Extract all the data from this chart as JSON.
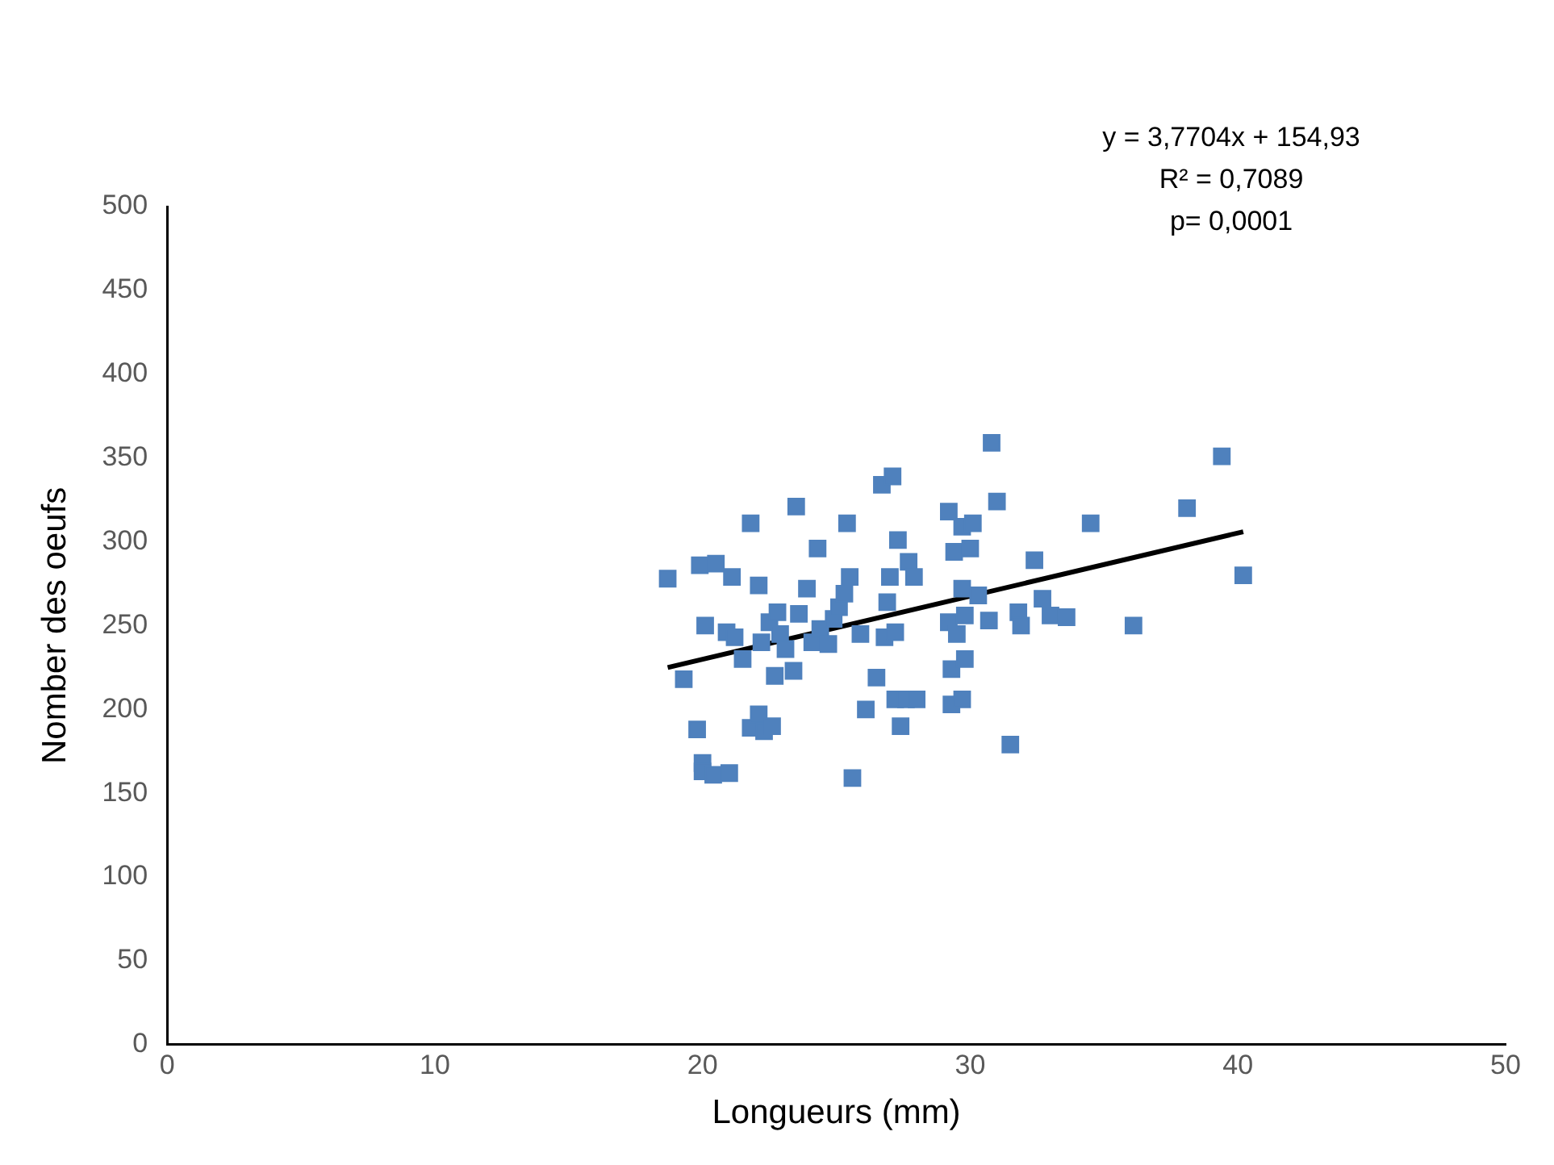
{
  "chart_data": {
    "type": "scatter",
    "xlabel": "Longueurs (mm)",
    "ylabel": "Nomber des oeufs",
    "xlim": [
      0,
      50
    ],
    "xticks": [
      0,
      10,
      20,
      30,
      40,
      50
    ],
    "ylim": [
      0,
      500
    ],
    "yticks": [
      0,
      50,
      100,
      150,
      200,
      250,
      300,
      350,
      400,
      450,
      500
    ],
    "grid": false,
    "legend": false,
    "annotations": [
      "y = 3,7704x + 154,93",
      "R² = 0,7089",
      "p= 0,0001"
    ],
    "series": [
      {
        "type": "scatter",
        "marker": "square",
        "color": "#4f81bd",
        "x": [
          18.7,
          19.3,
          19.8,
          19.9,
          20.0,
          20.1,
          20.0,
          20.4,
          20.5,
          20.9,
          21.0,
          21.1,
          21.2,
          21.5,
          21.8,
          21.8,
          22.1,
          22.1,
          22.2,
          22.3,
          22.5,
          22.6,
          22.7,
          22.8,
          22.9,
          23.1,
          23.4,
          23.5,
          23.6,
          23.9,
          24.1,
          24.3,
          24.4,
          24.7,
          24.9,
          25.1,
          25.3,
          25.4,
          25.5,
          25.6,
          25.9,
          26.1,
          26.5,
          26.7,
          26.8,
          26.9,
          27.0,
          27.1,
          27.2,
          27.2,
          27.3,
          27.4,
          27.6,
          27.7,
          27.9,
          28.0,
          29.2,
          29.2,
          29.3,
          29.3,
          29.4,
          29.5,
          29.7,
          29.7,
          29.8,
          29.8,
          29.7,
          30.0,
          30.1,
          30.3,
          30.7,
          30.8,
          31.0,
          31.5,
          31.8,
          31.9,
          32.4,
          32.7,
          33.0,
          33.6,
          34.5,
          36.1,
          38.1,
          39.4,
          40.2
        ],
        "values": [
          278,
          218,
          188,
          286,
          168,
          250,
          163,
          161,
          287,
          246,
          162,
          279,
          243,
          230,
          311,
          189,
          274,
          197,
          240,
          187,
          252,
          190,
          220,
          258,
          245,
          236,
          223,
          321,
          257,
          272,
          240,
          296,
          248,
          239,
          254,
          261,
          269,
          311,
          279,
          159,
          245,
          200,
          219,
          334,
          243,
          264,
          279,
          339,
          206,
          246,
          301,
          190,
          206,
          288,
          279,
          206,
          318,
          252,
          224,
          203,
          294,
          245,
          309,
          272,
          256,
          230,
          206,
          296,
          311,
          268,
          253,
          359,
          324,
          179,
          258,
          250,
          289,
          266,
          256,
          255,
          311,
          250,
          320,
          351,
          280
        ]
      },
      {
        "type": "line",
        "marker": "none",
        "color": "#000000",
        "line_style": "solid",
        "x": [
          18.7,
          40.2
        ],
        "values": [
          225,
          306
        ]
      }
    ]
  }
}
